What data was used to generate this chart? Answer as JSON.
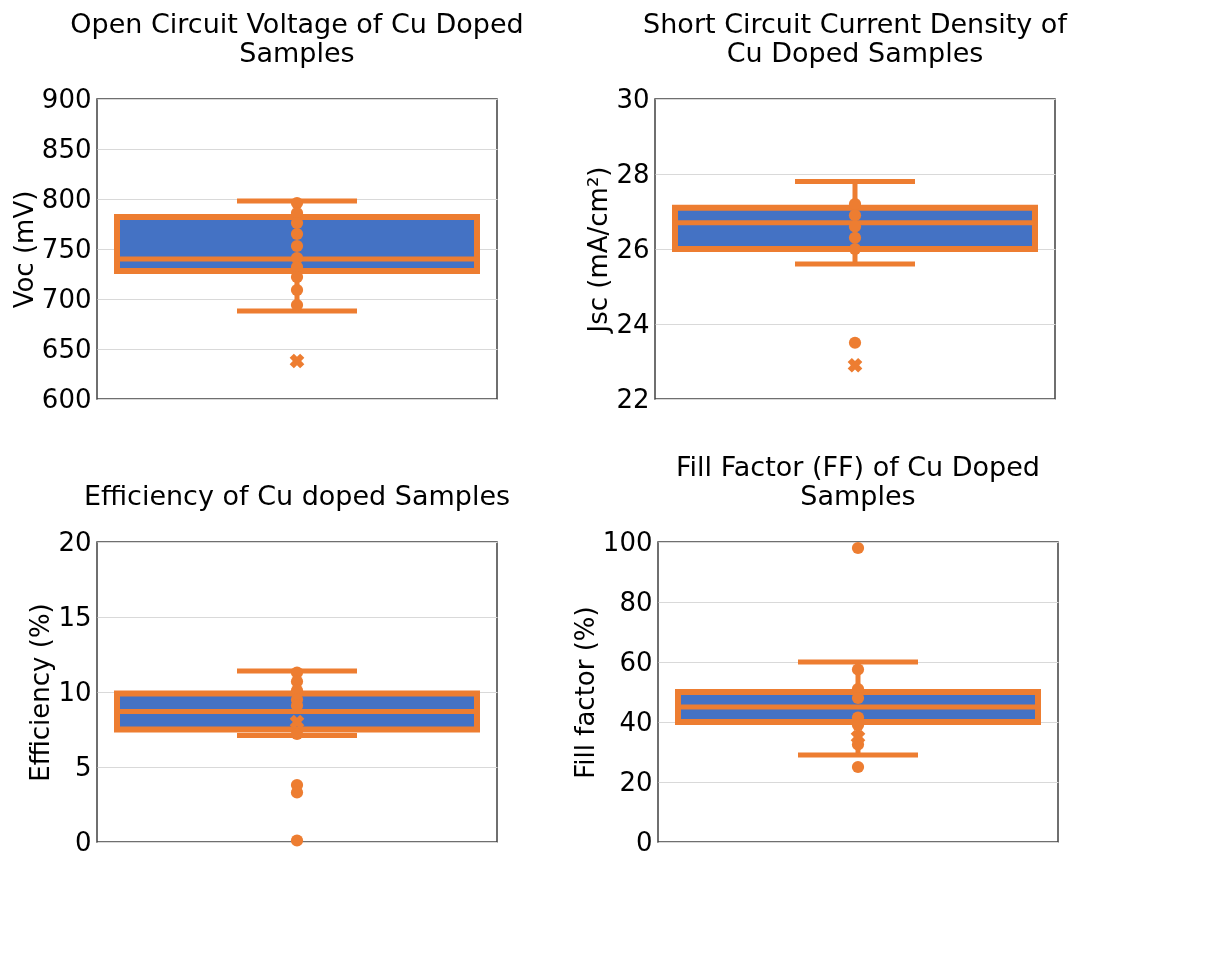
{
  "chart_data": [
    {
      "type": "box",
      "title": "Open Circuit Voltage of Cu Doped Samples",
      "ylabel": "Voc (mV)",
      "categories": [
        null
      ],
      "ylim": [
        600,
        900
      ],
      "yticks": [
        600,
        650,
        700,
        750,
        800,
        850,
        900
      ],
      "grid": "y",
      "color": "#4472c4",
      "boxes": [
        {
          "low": 688,
          "q1": 728,
          "median": 740,
          "q3": 782,
          "high": 798,
          "mean": 638
        }
      ],
      "series": [
        {
          "type": "scatter",
          "color": "#ed7d31",
          "x": [
            null,
            null,
            null,
            null,
            null,
            null,
            null,
            null,
            null,
            null
          ],
          "values": [
            796,
            786,
            776,
            765,
            753,
            741,
            732,
            722,
            709,
            694
          ]
        }
      ]
    },
    {
      "type": "box",
      "title": "Short Circuit Current Density of Cu Doped Samples",
      "ylabel": "Jsc (mA/cm²)",
      "categories": [
        null
      ],
      "ylim": [
        22,
        30
      ],
      "yticks": [
        22,
        24,
        26,
        28,
        30
      ],
      "grid": "y",
      "color": "#4472c4",
      "boxes": [
        {
          "low": 25.6,
          "q1": 26.0,
          "median": 26.7,
          "q3": 27.1,
          "high": 27.8,
          "mean": 22.9,
          "outliers": [
            23.5
          ]
        }
      ],
      "series": [
        {
          "type": "scatter",
          "color": "#ed7d31",
          "x": [
            null,
            null,
            null,
            null,
            null
          ],
          "values": [
            27.2,
            26.9,
            26.6,
            26.3,
            26.0
          ]
        }
      ]
    },
    {
      "type": "box",
      "title": "Efficiency of Cu doped Samples",
      "ylabel": "Efficiency (%)",
      "categories": [
        null
      ],
      "ylim": [
        0,
        20
      ],
      "yticks": [
        0,
        5,
        10,
        15,
        20
      ],
      "grid": "y",
      "color": "#4472c4",
      "boxes": [
        {
          "low": 7.1,
          "q1": 7.5,
          "median": 8.7,
          "q3": 9.9,
          "high": 11.4,
          "mean": 8.0,
          "outliers": [
            3.8,
            3.3,
            0.1
          ]
        }
      ],
      "series": [
        {
          "type": "scatter",
          "color": "#ed7d31",
          "x": [
            null,
            null,
            null,
            null,
            null,
            null
          ],
          "values": [
            11.3,
            10.7,
            10.1,
            9.5,
            9.1,
            7.2
          ]
        }
      ]
    },
    {
      "type": "box",
      "title": "Fill Factor (FF) of Cu Doped Samples",
      "ylabel": "Fill factor (%)",
      "categories": [
        null
      ],
      "ylim": [
        0,
        100
      ],
      "yticks": [
        0,
        20,
        40,
        60,
        80,
        100
      ],
      "grid": "y",
      "color": "#4472c4",
      "boxes": [
        {
          "low": 29,
          "q1": 40,
          "median": 45,
          "q3": 50,
          "high": 60,
          "mean": 35,
          "outliers": [
            98,
            25
          ]
        }
      ],
      "series": [
        {
          "type": "scatter",
          "color": "#ed7d31",
          "x": [
            null,
            null,
            null,
            null,
            null,
            null
          ],
          "values": [
            57.5,
            51,
            48,
            41.5,
            39,
            32.5
          ]
        }
      ]
    }
  ]
}
